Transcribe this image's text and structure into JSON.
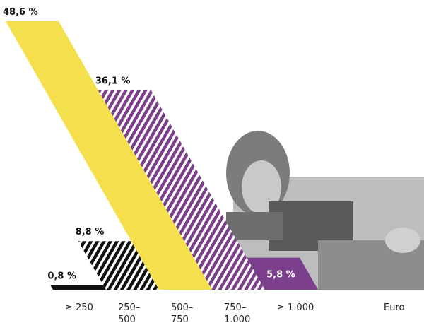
{
  "chart_data": {
    "type": "slanted-bar",
    "categories": [
      "≥ 250",
      "250–\n500",
      "500–\n750",
      "750–\n1.000",
      "≥ 1.000"
    ],
    "unit_label": "Euro",
    "values": [
      0.8,
      8.8,
      48.6,
      36.1,
      5.8
    ],
    "value_labels": [
      "0,8 %",
      "8,8 %",
      "48,6 %",
      "36,1 %",
      "5,8 %"
    ],
    "colors": [
      "#111111",
      "#111111",
      "#f4e04d",
      "#7b3f8c",
      "#7b3f8c"
    ],
    "patterns": [
      "solid",
      "hatched",
      "solid",
      "hatched",
      "solid"
    ],
    "value_label_inside": [
      false,
      false,
      false,
      false,
      true
    ]
  }
}
